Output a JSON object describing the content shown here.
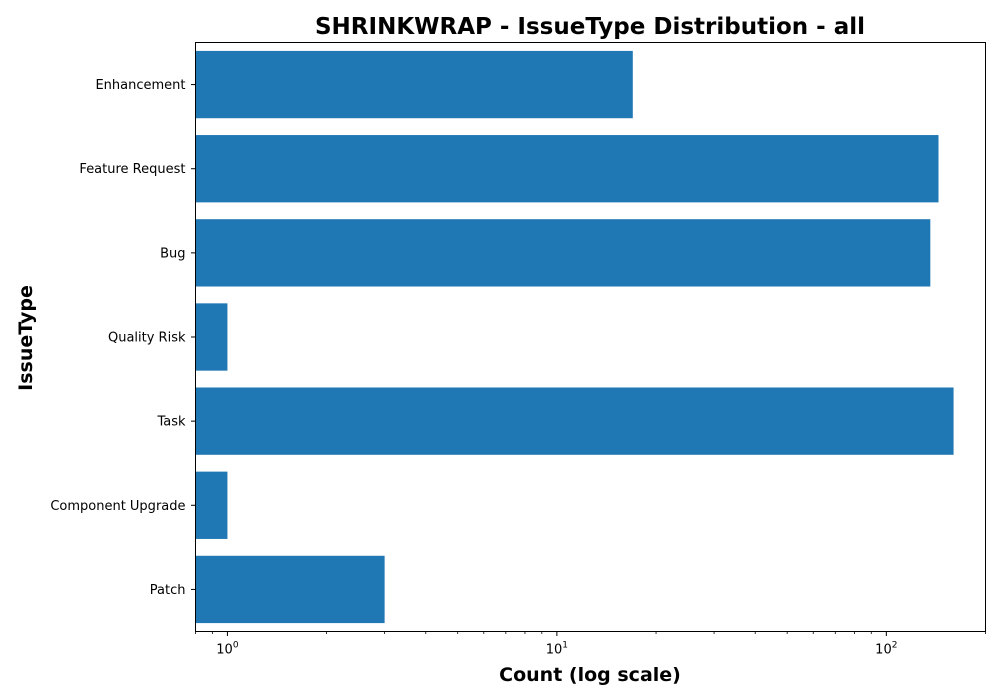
{
  "chart_data": {
    "type": "bar",
    "orientation": "horizontal",
    "title": "SHRINKWRAP - IssueType Distribution - all",
    "xlabel": "Count (log scale)",
    "ylabel": "IssueType",
    "x_scale": "log",
    "xlim": [
      0.8,
      200
    ],
    "x_ticks": [
      {
        "value": 1,
        "base": "10",
        "exp": "0"
      },
      {
        "value": 10,
        "base": "10",
        "exp": "1"
      },
      {
        "value": 100,
        "base": "10",
        "exp": "2"
      }
    ],
    "categories": [
      "Patch",
      "Component Upgrade",
      "Task",
      "Quality Risk",
      "Bug",
      "Feature Request",
      "Enhancement"
    ],
    "values": [
      3,
      1,
      160,
      1,
      136,
      144,
      17
    ],
    "bar_color": "#1f77b4",
    "grid": false,
    "legend": "none"
  }
}
